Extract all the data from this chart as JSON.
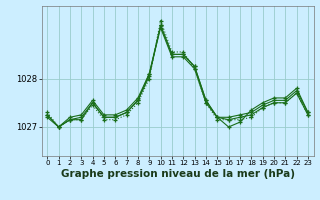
{
  "background_color": "#cceeff",
  "grid_color": "#99cccc",
  "line_color": "#1a6e1a",
  "xlabel": "Graphe pression niveau de la mer (hPa)",
  "xlabel_fontsize": 7.5,
  "yticks": [
    1027,
    1028
  ],
  "ylim": [
    1026.4,
    1029.5
  ],
  "xlim": [
    -0.5,
    23.5
  ],
  "xticks": [
    0,
    1,
    2,
    3,
    4,
    5,
    6,
    7,
    8,
    9,
    10,
    11,
    12,
    13,
    14,
    15,
    16,
    17,
    18,
    19,
    20,
    21,
    22,
    23
  ],
  "series": [
    {
      "x": [
        0,
        1,
        2,
        3,
        4,
        5,
        6,
        7,
        8,
        9,
        10,
        11,
        12,
        13,
        14,
        15,
        16,
        17,
        18,
        19,
        20,
        21,
        22,
        23
      ],
      "y": [
        1027.3,
        1027.0,
        1027.15,
        1027.15,
        1027.45,
        1027.15,
        1027.15,
        1027.25,
        1027.5,
        1028.0,
        1029.2,
        1028.55,
        1028.55,
        1028.2,
        1027.5,
        1027.15,
        1027.15,
        1027.15,
        1027.2,
        1027.4,
        1027.5,
        1027.5,
        1027.7,
        1027.25
      ],
      "style": "dotted"
    },
    {
      "x": [
        0,
        1,
        2,
        3,
        4,
        5,
        6,
        7,
        8,
        9,
        10,
        11,
        12,
        13,
        14,
        15,
        16,
        17,
        18,
        19,
        20,
        21,
        22,
        23
      ],
      "y": [
        1027.25,
        1027.0,
        1027.15,
        1027.15,
        1027.5,
        1027.2,
        1027.2,
        1027.3,
        1027.55,
        1028.05,
        1029.1,
        1028.5,
        1028.5,
        1028.25,
        1027.55,
        1027.2,
        1027.2,
        1027.25,
        1027.3,
        1027.45,
        1027.55,
        1027.55,
        1027.75,
        1027.3
      ],
      "style": "solid"
    },
    {
      "x": [
        0,
        1,
        2,
        3,
        4,
        5,
        6,
        7,
        8,
        9,
        10,
        11,
        12,
        13,
        14,
        15,
        16,
        17,
        18,
        19,
        20,
        21,
        22,
        23
      ],
      "y": [
        1027.2,
        1027.0,
        1027.15,
        1027.2,
        1027.5,
        1027.2,
        1027.2,
        1027.3,
        1027.55,
        1028.1,
        1029.05,
        1028.45,
        1028.45,
        1028.2,
        1027.5,
        1027.2,
        1027.15,
        1027.2,
        1027.25,
        1027.4,
        1027.5,
        1027.5,
        1027.7,
        1027.25
      ],
      "style": "solid"
    },
    {
      "x": [
        0,
        1,
        2,
        3,
        4,
        5,
        6,
        7,
        8,
        9,
        10,
        11,
        12,
        13,
        14,
        15,
        16,
        17,
        18,
        19,
        20,
        21,
        22,
        23
      ],
      "y": [
        1027.25,
        1027.0,
        1027.2,
        1027.25,
        1027.55,
        1027.25,
        1027.25,
        1027.35,
        1027.6,
        1028.1,
        1029.1,
        1028.5,
        1028.5,
        1028.25,
        1027.55,
        1027.2,
        1027.0,
        1027.1,
        1027.35,
        1027.5,
        1027.6,
        1027.6,
        1027.8,
        1027.3
      ],
      "style": "solid"
    }
  ]
}
